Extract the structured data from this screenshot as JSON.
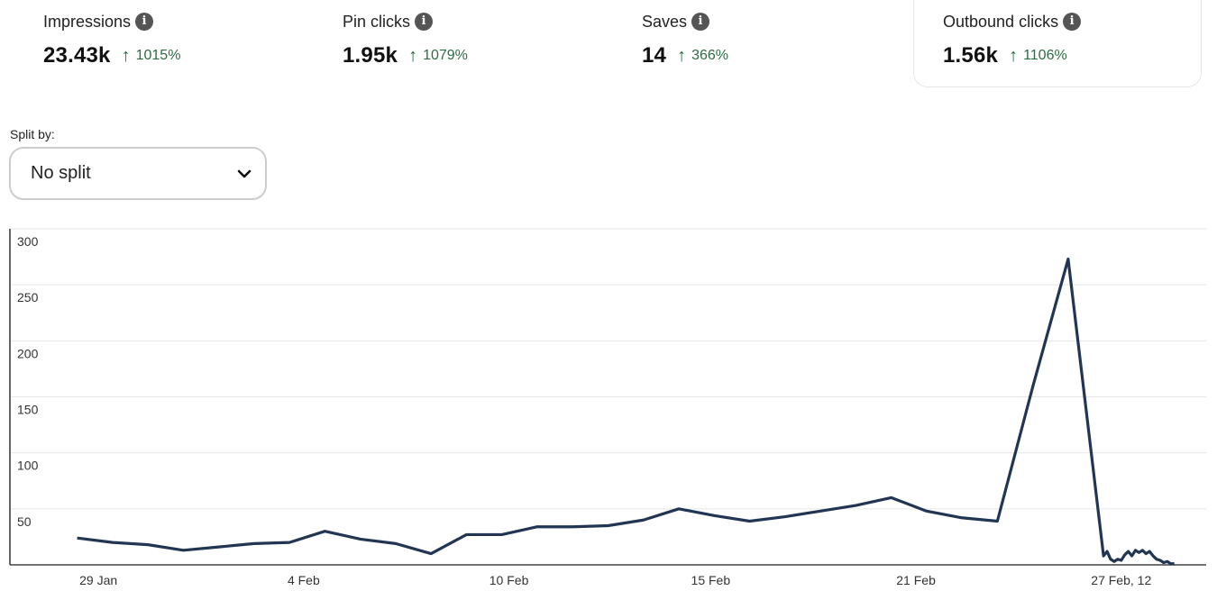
{
  "metrics": [
    {
      "label": "Impressions",
      "value": "23.43k",
      "change": "1015%",
      "selected": false
    },
    {
      "label": "Pin clicks",
      "value": "1.95k",
      "change": "1079%",
      "selected": false
    },
    {
      "label": "Saves",
      "value": "14",
      "change": "366%",
      "selected": false
    },
    {
      "label": "Outbound clicks",
      "value": "1.56k",
      "change": "1106%",
      "selected": true
    }
  ],
  "split": {
    "label": "Split by:",
    "value": "No split"
  },
  "colors": {
    "line": "#223654",
    "up": "#1f6b3a",
    "grid": "#e6e6e6"
  },
  "chart_data": {
    "type": "line",
    "title": "Outbound clicks",
    "ylim": [
      0,
      300
    ],
    "yticks": [
      50,
      100,
      150,
      200,
      250,
      300
    ],
    "xlim": [
      -1.9,
      31.9
    ],
    "xticks": [
      {
        "pos": 0.6,
        "label": "29 Jan"
      },
      {
        "pos": 6.4,
        "label": "4 Feb"
      },
      {
        "pos": 12.2,
        "label": "10 Feb"
      },
      {
        "pos": 17.9,
        "label": "15 Feb"
      },
      {
        "pos": 23.7,
        "label": "21 Feb"
      },
      {
        "pos": 29.5,
        "label": "27 Feb, 12"
      }
    ],
    "grid": true,
    "series": [
      {
        "name": "Outbound clicks",
        "points": [
          [
            0,
            24
          ],
          [
            1,
            20
          ],
          [
            2,
            18
          ],
          [
            3,
            13
          ],
          [
            4,
            16
          ],
          [
            5,
            19
          ],
          [
            6,
            20
          ],
          [
            7,
            30
          ],
          [
            8,
            23
          ],
          [
            9,
            19
          ],
          [
            10,
            10
          ],
          [
            11,
            27
          ],
          [
            12,
            27
          ],
          [
            13,
            34
          ],
          [
            14,
            34
          ],
          [
            15,
            35
          ],
          [
            16,
            40
          ],
          [
            17,
            50
          ],
          [
            18,
            44
          ],
          [
            19,
            39
          ],
          [
            20,
            43
          ],
          [
            21,
            48
          ],
          [
            22,
            53
          ],
          [
            23,
            60
          ],
          [
            24,
            48
          ],
          [
            25,
            42
          ],
          [
            26,
            39
          ],
          [
            27,
            159
          ],
          [
            28,
            273
          ],
          [
            29,
            8
          ],
          [
            29.1,
            12
          ],
          [
            29.2,
            5
          ],
          [
            29.3,
            3
          ],
          [
            29.4,
            5
          ],
          [
            29.5,
            4
          ],
          [
            29.6,
            9
          ],
          [
            29.7,
            12
          ],
          [
            29.8,
            8
          ],
          [
            29.9,
            13
          ],
          [
            30,
            11
          ],
          [
            30.1,
            13
          ],
          [
            30.2,
            10
          ],
          [
            30.3,
            12
          ],
          [
            30.4,
            8
          ],
          [
            30.5,
            5
          ],
          [
            30.6,
            4
          ],
          [
            30.7,
            2
          ],
          [
            30.8,
            3
          ],
          [
            30.9,
            1
          ],
          [
            31,
            1
          ]
        ]
      }
    ]
  }
}
